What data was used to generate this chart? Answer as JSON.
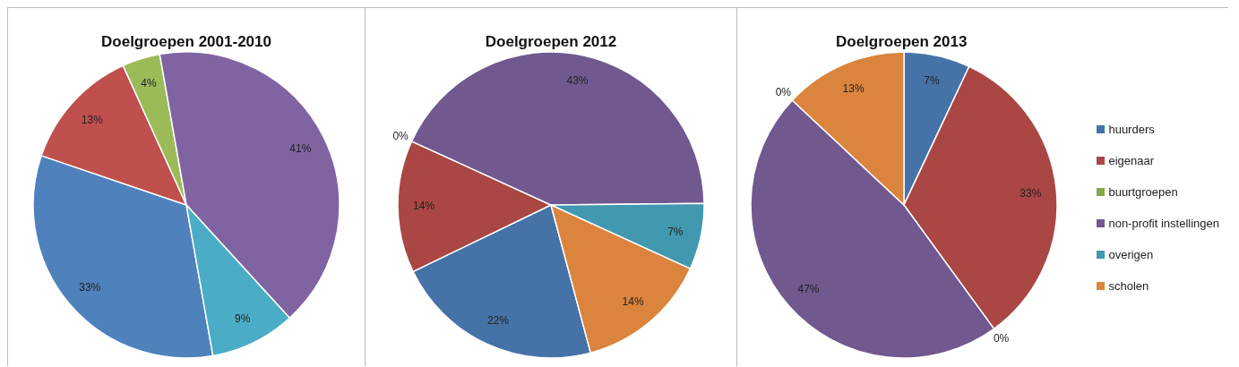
{
  "chart_data": [
    {
      "type": "pie",
      "title": "Doelgroepen 2001-2010",
      "categories": [
        null,
        null,
        null,
        null,
        null
      ],
      "values": [
        33,
        13,
        4,
        41,
        9
      ],
      "value_labels": [
        "33%",
        "13%",
        "4%",
        "41%",
        "9%"
      ],
      "colors": [
        "#4f81bd",
        "#c0504d",
        "#9bbb59",
        "#8064a2",
        "#4bacc6"
      ],
      "legend": false
    },
    {
      "type": "pie",
      "title": "Doelgroepen 2012",
      "categories": [
        null,
        null,
        null,
        null,
        null,
        null
      ],
      "values": [
        22,
        14,
        0,
        43,
        7,
        14
      ],
      "value_labels": [
        "22%",
        "14%",
        "0%",
        "43%",
        "7%",
        "14%"
      ],
      "colors": [
        "#4572a7",
        "#aa4643",
        "#89a54e",
        "#71588f",
        "#4198af",
        "#db843d"
      ],
      "legend": false
    },
    {
      "type": "pie",
      "title": "Doelgroepen 2013",
      "categories": [
        "huurders",
        "eigenaar",
        "buurtgroepen",
        "non-profit instellingen",
        "overigen",
        "scholen"
      ],
      "values": [
        7,
        33,
        0,
        47,
        0,
        13
      ],
      "value_labels": [
        "7%",
        "33%",
        "0%",
        "47%",
        "0%",
        "13%"
      ],
      "colors": [
        "#4572a7",
        "#aa4643",
        "#89a54e",
        "#71588f",
        "#4198af",
        "#db843d"
      ],
      "legend": "right"
    }
  ]
}
